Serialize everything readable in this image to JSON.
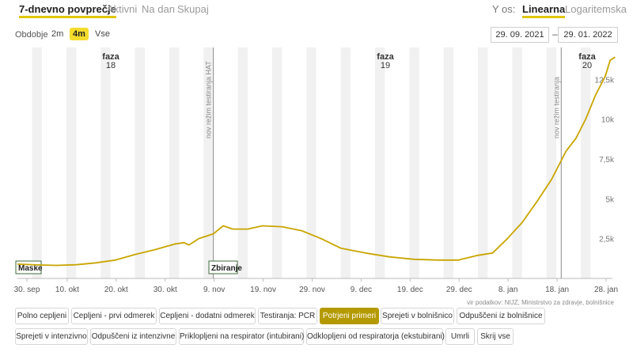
{
  "tabs": [
    "7-dnevno povprečje",
    "Aktivni",
    "Na dan",
    "Skupaj"
  ],
  "scale": {
    "label": "Y os:",
    "linear": "Linearna",
    "log": "Logaritemska"
  },
  "period": {
    "label": "Obdobje",
    "options": [
      "2m",
      "4m",
      "Vse"
    ],
    "selected": "4m"
  },
  "date_range": {
    "from": "29. 09. 2021",
    "separator": "–",
    "to": "29. 01. 2022"
  },
  "source_text": "vir podatkov: NIJZ, Ministrstvo za zdravje, bolnišnice",
  "buttons_row1": [
    "Polno cepljeni",
    "Cepljeni - prvi odmerek",
    "Cepljeni - dodatni odmerek",
    "Testiranja: PCR",
    "Potrjeni primeri",
    "Sprejeti v bolnišnico",
    "Odpuščeni iz bolnišnice"
  ],
  "buttons_row2": [
    "Sprejeti v intenzivno",
    "Odpuščeni iz intenzivne",
    "Priklopljeni na respirator (intubirani)",
    "Odklopljeni od respiratorja (ekstubirani)",
    "Umrli",
    "Skrij vse"
  ],
  "active_button": "Potrjeni primeri",
  "colors": {
    "line": "#c9a500",
    "accent": "#f5dc2c",
    "active_button": "#b49a00"
  },
  "chart_data": {
    "type": "line",
    "series": [],
    "x_ticks": [
      "30. sep",
      "10. okt",
      "20. okt",
      "30. okt",
      "9. nov",
      "19. nov",
      "29. nov",
      "9. dec",
      "19. dec",
      "29. dec",
      "8. jan",
      "18. jan",
      "28. jan"
    ],
    "y_ticks": [
      "2,5k",
      "5k",
      "7,5k",
      "10k",
      "12,5k"
    ],
    "ylim": [
      0,
      14500
    ],
    "grid": "vertical stripes (weekends)",
    "phases": [
      {
        "label": "faza",
        "number": "18",
        "from": "2021-09-29"
      },
      {
        "label": "faza",
        "number": "19",
        "from": "2021-11-08"
      },
      {
        "label": "faza",
        "number": "20",
        "from": "2022-01-21"
      }
    ],
    "vertical_markers": [
      {
        "date": "2021-11-08",
        "label": "nov režim testiranja HAT"
      },
      {
        "date": "2022-01-18",
        "label": "nov režim testiranja"
      }
    ],
    "event_labels": [
      {
        "date": "2021-09-30",
        "label": "Maske"
      },
      {
        "date": "2021-11-08",
        "label": "Zbiranje"
      }
    ],
    "data": [
      [
        "2021-09-29",
        900
      ],
      [
        "2021-10-03",
        850
      ],
      [
        "2021-10-07",
        820
      ],
      [
        "2021-10-11",
        860
      ],
      [
        "2021-10-15",
        980
      ],
      [
        "2021-10-19",
        1150
      ],
      [
        "2021-10-23",
        1500
      ],
      [
        "2021-10-27",
        1800
      ],
      [
        "2021-10-31",
        2150
      ],
      [
        "2021-11-02",
        2250
      ],
      [
        "2021-11-03",
        2100
      ],
      [
        "2021-11-05",
        2500
      ],
      [
        "2021-11-08",
        2800
      ],
      [
        "2021-11-10",
        3300
      ],
      [
        "2021-11-12",
        3100
      ],
      [
        "2021-11-15",
        3100
      ],
      [
        "2021-11-18",
        3300
      ],
      [
        "2021-11-22",
        3250
      ],
      [
        "2021-11-26",
        3000
      ],
      [
        "2021-11-30",
        2500
      ],
      [
        "2021-12-04",
        1900
      ],
      [
        "2021-12-09",
        1600
      ],
      [
        "2021-12-14",
        1350
      ],
      [
        "2021-12-19",
        1200
      ],
      [
        "2021-12-24",
        1150
      ],
      [
        "2021-12-28",
        1150
      ],
      [
        "2022-01-01",
        1450
      ],
      [
        "2022-01-04",
        1600
      ],
      [
        "2022-01-07",
        2500
      ],
      [
        "2022-01-10",
        3500
      ],
      [
        "2022-01-13",
        4800
      ],
      [
        "2022-01-16",
        6200
      ],
      [
        "2022-01-19",
        8000
      ],
      [
        "2022-01-21",
        8800
      ],
      [
        "2022-01-23",
        10000
      ],
      [
        "2022-01-25",
        11500
      ],
      [
        "2022-01-27",
        12700
      ],
      [
        "2022-01-28",
        13700
      ],
      [
        "2022-01-29",
        13900
      ]
    ]
  }
}
